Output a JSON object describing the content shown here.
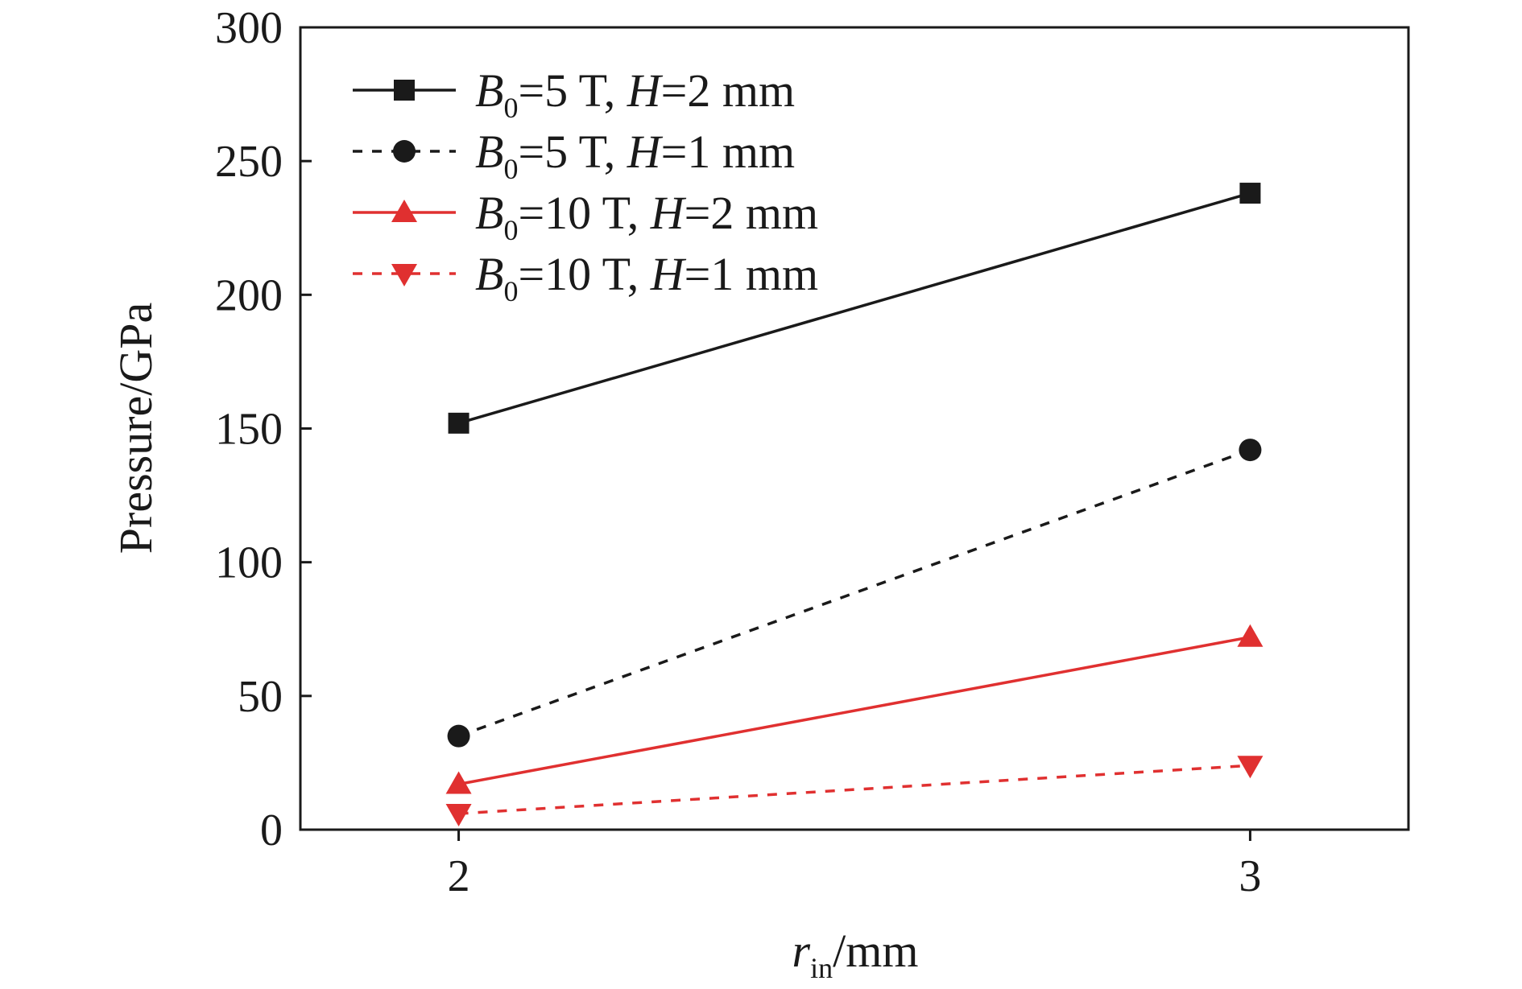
{
  "chart_data": {
    "type": "line",
    "xlabel": {
      "var": "r",
      "sub": "in",
      "unit": "/mm"
    },
    "ylabel": "Pressure/GPa",
    "x": [
      2,
      3
    ],
    "xlim": [
      1.8,
      3.2
    ],
    "ylim": [
      0,
      300
    ],
    "xticks": [
      "2",
      "3"
    ],
    "yticks": [
      "0",
      "50",
      "100",
      "150",
      "200",
      "250",
      "300"
    ],
    "grid": false,
    "legend_position": "top-left",
    "series": [
      {
        "key": "s1",
        "marker": "square",
        "dash": "solid",
        "color": "#1a1a1a",
        "label": {
          "b": "B",
          "bsub": "0",
          "mid": "=5 T, ",
          "h": "H",
          "rest": "=2 mm"
        },
        "values": [
          152,
          238
        ]
      },
      {
        "key": "s2",
        "marker": "circle",
        "dash": "dashed",
        "color": "#1a1a1a",
        "label": {
          "b": "B",
          "bsub": "0",
          "mid": "=5 T, ",
          "h": "H",
          "rest": "=1 mm"
        },
        "values": [
          35,
          142
        ]
      },
      {
        "key": "s3",
        "marker": "triangle-up",
        "dash": "solid",
        "color": "#e03030",
        "label": {
          "b": "B",
          "bsub": "0",
          "mid": "=10 T, ",
          "h": "H",
          "rest": "=2 mm"
        },
        "values": [
          17,
          72
        ]
      },
      {
        "key": "s4",
        "marker": "triangle-down",
        "dash": "dashed",
        "color": "#e03030",
        "label": {
          "b": "B",
          "bsub": "0",
          "mid": "=10 T, ",
          "h": "H",
          "rest": "=1 mm"
        },
        "values": [
          6,
          24
        ]
      }
    ]
  }
}
